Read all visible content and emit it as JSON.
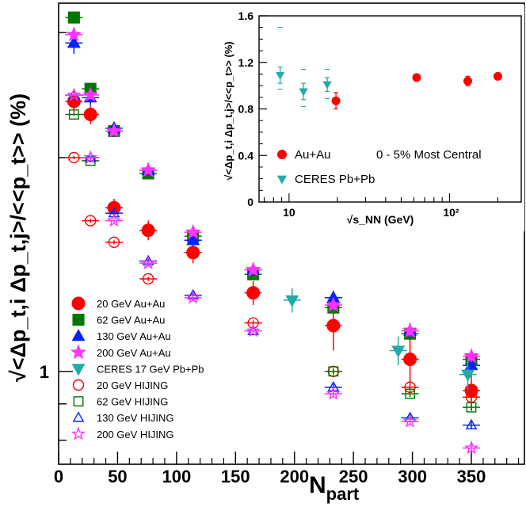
{
  "chart_data": [
    {
      "type": "scatter",
      "xlabel": "N",
      "xlabel_sub": "part",
      "ylabel": "√<Δp_t,i Δp_t,j>/<<p_t>> (%)",
      "xlim": [
        0,
        395
      ],
      "ylim": [
        0.74,
        3.3
      ],
      "yscale": "log",
      "x_ticks": [
        0,
        50,
        100,
        150,
        200,
        250,
        300,
        350
      ],
      "y_tick_labels": [
        {
          "value": 1,
          "label": "1"
        }
      ],
      "grid": false,
      "legend_position": "bottom-left",
      "series": [
        {
          "name": "20 GeV Au+Au",
          "marker": "circle",
          "filled": true,
          "color": "#ff0000",
          "x": [
            13,
            27,
            47,
            76,
            114,
            165,
            233,
            298,
            350
          ],
          "y": [
            2.4,
            2.3,
            1.7,
            1.58,
            1.47,
            1.29,
            1.16,
            1.04,
            0.94
          ],
          "yerr": [
            0.09,
            0.07,
            0.05,
            0.05,
            0.05,
            0.05,
            0.09,
            0.08,
            0.06
          ]
        },
        {
          "name": "62 GeV Au+Au",
          "marker": "square",
          "filled": true,
          "color": "#007700",
          "x": [
            13,
            27,
            47,
            76,
            114,
            165,
            233,
            298,
            350
          ],
          "y": [
            3.15,
            2.5,
            2.18,
            1.9,
            1.55,
            1.37,
            1.23,
            1.13,
            1.04
          ],
          "yerr": [
            0.06,
            0.04,
            0.03,
            0.03,
            0.03,
            0.02,
            0.02,
            0.02,
            0.02
          ]
        },
        {
          "name": "130 GeV Au+Au",
          "marker": "triangle-up",
          "filled": true,
          "color": "#0022ff",
          "x": [
            13,
            27,
            47,
            76,
            114,
            165,
            233,
            298,
            350
          ],
          "y": [
            2.9,
            2.43,
            2.2,
            1.92,
            1.53,
            1.39,
            1.27,
            1.14,
            1.02
          ],
          "yerr": [
            0.1,
            0.06,
            0.04,
            0.03,
            0.03,
            0.03,
            0.03,
            0.03,
            0.03
          ]
        },
        {
          "name": "200 GeV Au+Au",
          "marker": "star",
          "filled": true,
          "color": "#ff33ff",
          "x": [
            13,
            27,
            47,
            76,
            114,
            165,
            233,
            298,
            350
          ],
          "y": [
            2.98,
            2.45,
            2.18,
            1.92,
            1.57,
            1.39,
            1.24,
            1.14,
            1.05
          ],
          "yerr": [
            0.05,
            0.03,
            0.03,
            0.02,
            0.02,
            0.02,
            0.02,
            0.02,
            0.02
          ]
        },
        {
          "name": "CERES 17 GeV Pb+Pb",
          "marker": "triangle-down",
          "filled": true,
          "color": "#22aaaa",
          "x": [
            198,
            288,
            347
          ],
          "y": [
            1.26,
            1.07,
            0.99
          ],
          "yerr": [
            0.05,
            0.05,
            0.05
          ]
        },
        {
          "name": "20 GeV HIJING",
          "marker": "circle",
          "filled": false,
          "color": "#ff0000",
          "x": [
            13,
            27,
            47,
            76,
            165,
            233,
            298,
            350
          ],
          "y": [
            2.0,
            1.63,
            1.52,
            1.35,
            1.17,
            1.0,
            0.95,
            0.92
          ],
          "yerr": [
            0.01,
            0.01,
            0.01,
            0.01,
            0.01,
            0.01,
            0.01,
            0.01
          ]
        },
        {
          "name": "62 GeV HIJING",
          "marker": "square",
          "filled": false,
          "color": "#007700",
          "x": [
            13,
            27,
            233,
            298,
            350
          ],
          "y": [
            2.3,
            1.98,
            1.0,
            0.93,
            0.89
          ],
          "yerr": [
            0.01,
            0.01,
            0.01,
            0.01,
            0.01
          ]
        },
        {
          "name": "130 GeV HIJING",
          "marker": "triangle-up",
          "filled": false,
          "color": "#0022ff",
          "x": [
            13,
            27,
            47,
            76,
            114,
            165,
            233,
            298,
            350
          ],
          "y": [
            2.45,
            2.0,
            1.67,
            1.43,
            1.28,
            1.14,
            0.95,
            0.86,
            0.84
          ],
          "yerr": [
            0.01,
            0.01,
            0.01,
            0.01,
            0.01,
            0.01,
            0.01,
            0.01,
            0.01
          ]
        },
        {
          "name": "200 GeV HIJING",
          "marker": "star",
          "filled": false,
          "color": "#ff33ff",
          "x": [
            13,
            27,
            47,
            76,
            114,
            165,
            233,
            298,
            350
          ],
          "y": [
            2.45,
            2.0,
            1.63,
            1.42,
            1.27,
            1.14,
            0.93,
            0.85,
            0.78
          ],
          "yerr": [
            0.01,
            0.01,
            0.01,
            0.01,
            0.01,
            0.01,
            0.01,
            0.01,
            0.01
          ]
        }
      ]
    },
    {
      "type": "scatter",
      "xlabel": "√s_NN (GeV)",
      "ylabel": "√<Δp_t,i Δp_t,j>/<<p_t>> (%)",
      "xscale": "log",
      "xlim": [
        6.5,
        280
      ],
      "ylim": [
        0,
        1.6
      ],
      "y_ticks": [
        0,
        0.4,
        0.8,
        1.2,
        1.6
      ],
      "y_tick_labels": [
        "0",
        "0.4",
        "0.8",
        "1.2",
        "1.6"
      ],
      "x_tick_labels": [
        {
          "value": 10,
          "label": "10"
        },
        {
          "value": 100,
          "label": "10²"
        }
      ],
      "annotation": "0 - 5% Most Central",
      "grid": false,
      "legend_position": "bottom-left",
      "series": [
        {
          "name": "Au+Au",
          "marker": "circle",
          "filled": true,
          "color": "#ff0000",
          "x": [
            19.6,
            62.4,
            130,
            200
          ],
          "y": [
            0.87,
            1.07,
            1.04,
            1.08
          ],
          "yerr": [
            0.07,
            0.02,
            0.04,
            0.02
          ]
        },
        {
          "name": "CERES Pb+Pb",
          "marker": "triangle-down",
          "filled": true,
          "color": "#22aaaa",
          "x": [
            8.8,
            12.3,
            17.3
          ],
          "y": [
            1.09,
            0.95,
            1.01
          ],
          "yerr": [
            0.07,
            0.07,
            0.06
          ],
          "sys_high": [
            1.5,
            1.14,
            1.14
          ],
          "sys_low": [
            0.97,
            0.82,
            0.89
          ]
        }
      ]
    }
  ]
}
